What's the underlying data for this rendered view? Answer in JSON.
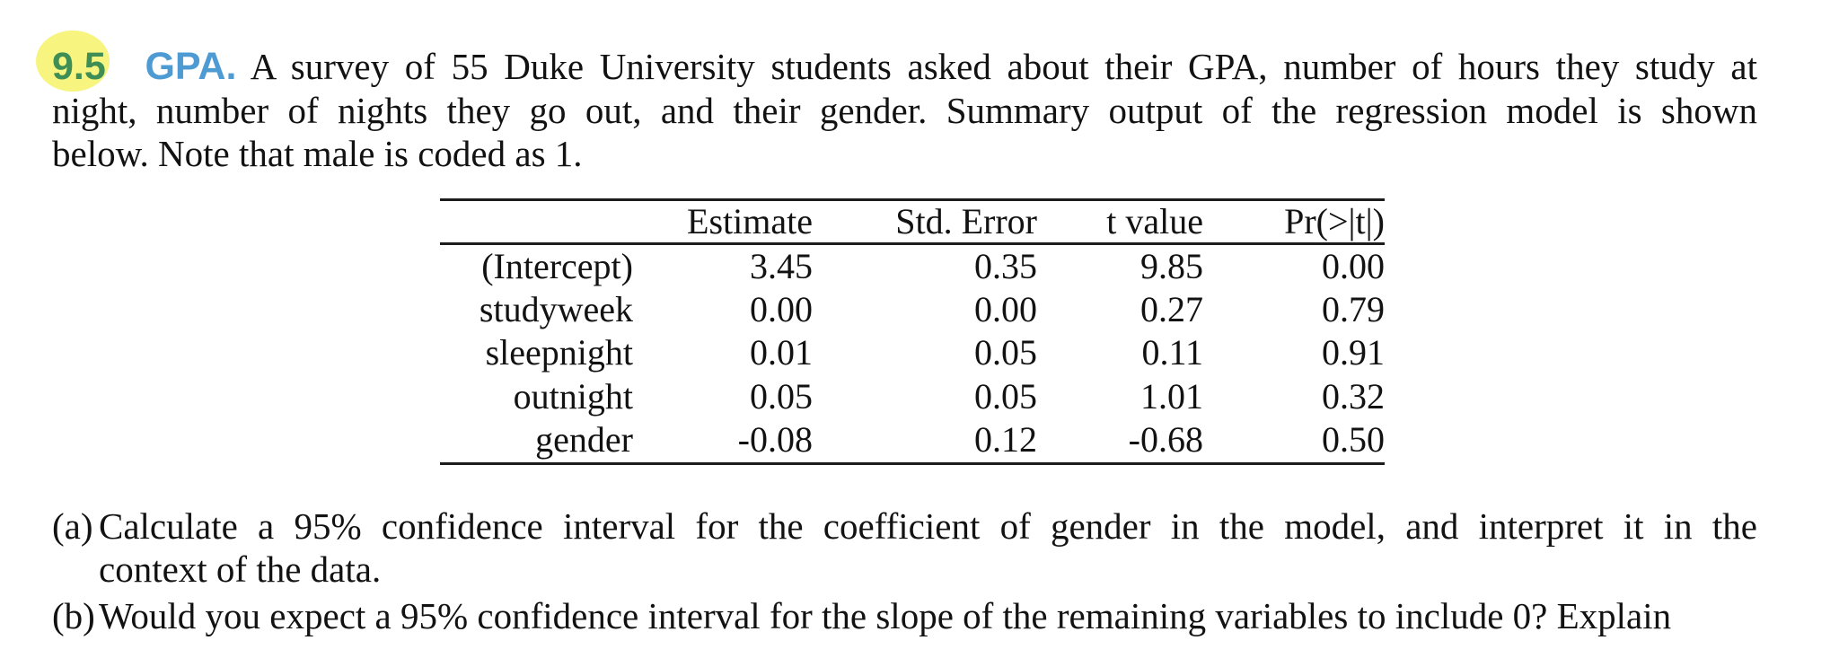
{
  "page": {
    "background": "#ffffff",
    "text_color": "#121212"
  },
  "exercise": {
    "number": "9.5",
    "number_color": "#3e8e55",
    "highlight_color": "#f7f57f",
    "title": "GPA.",
    "title_color": "#4e9bd4",
    "intro_lines": [
      "A survey of 55 Duke University students asked about their GPA, number of hours they study at",
      "night, number of nights they go out, and their gender. Summary output of the regression model is shown",
      "below. Note that male is coded as 1."
    ]
  },
  "table": {
    "headers": [
      "Estimate",
      "Std. Error",
      "t value",
      "Pr(>|t|)"
    ],
    "rows": [
      {
        "label": "(Intercept)",
        "values": [
          "3.45",
          "0.35",
          "9.85",
          "0.00"
        ]
      },
      {
        "label": "studyweek",
        "values": [
          "0.00",
          "0.00",
          "0.27",
          "0.79"
        ]
      },
      {
        "label": "sleepnight",
        "values": [
          "0.01",
          "0.05",
          "0.11",
          "0.91"
        ]
      },
      {
        "label": "outnight",
        "values": [
          "0.05",
          "0.05",
          "1.01",
          "0.32"
        ]
      },
      {
        "label": "gender",
        "values": [
          "-0.08",
          "0.12",
          "-0.68",
          "0.50"
        ]
      }
    ]
  },
  "parts": [
    {
      "label": "(a)",
      "lines": [
        "Calculate a 95% confidence interval for the coefficient of gender in the model, and interpret it in the",
        "context of the data."
      ]
    },
    {
      "label": "(b)",
      "lines": [
        "Would you expect a 95% confidence interval for the slope of the remaining variables to include 0? Explain"
      ]
    }
  ]
}
